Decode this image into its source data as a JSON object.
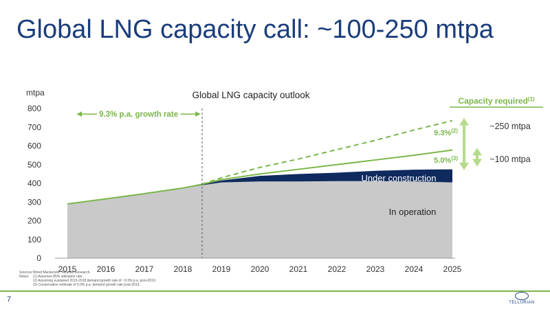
{
  "slide": {
    "title": "Global LNG capacity call: ~100-250 mtpa",
    "page_number": "7",
    "logo_text": "TELLURIAN"
  },
  "footnotes": [
    {
      "key": "Sources:",
      "text": "Wood Mackenzie, Tellurian Research."
    },
    {
      "key": "Notes:",
      "text": "(1) Assumes 85% utilization rate."
    },
    {
      "key": "",
      "text": "(2) Assuming sustained 2015-2018 demand growth rate of ~9.3% p.a. post-2019."
    },
    {
      "key": "",
      "text": "(3) Conservative estimate of 5.0% p.a. demand growth rate post-2019."
    }
  ],
  "colors": {
    "title": "#1a3d7c",
    "accent_green": "#7ab648",
    "light_green": "#b5db8c",
    "operation": "#c9c9c9",
    "construction": "#0f2a5e"
  },
  "chart_data": {
    "type": "area",
    "title": "Global LNG capacity outlook",
    "ylabel": "mtpa",
    "xlabel": "",
    "ylim": [
      0,
      800
    ],
    "yticks": [
      0,
      100,
      200,
      300,
      400,
      500,
      600,
      700,
      800
    ],
    "x": [
      2015,
      2016,
      2017,
      2018,
      2019,
      2020,
      2021,
      2022,
      2023,
      2024,
      2025
    ],
    "series": [
      {
        "name": "In operation",
        "values": [
          290,
          317,
          345,
          375,
          405,
          410,
          410,
          412,
          412,
          410,
          405
        ]
      },
      {
        "name": "Under construction",
        "values": [
          0,
          0,
          0,
          0,
          10,
          30,
          40,
          45,
          55,
          63,
          70
        ]
      }
    ],
    "demand_lines": [
      {
        "label": "9.3%",
        "sup": "(2)",
        "style": "dashed",
        "x": [
          2018.5,
          2019,
          2020,
          2021,
          2022,
          2023,
          2024,
          2025
        ],
        "values": [
          395,
          430,
          485,
          530,
          580,
          630,
          685,
          735
        ]
      },
      {
        "label": "5.0%",
        "sup": "(3)",
        "style": "solid",
        "x": [
          2018.5,
          2019,
          2020,
          2021,
          2022,
          2023,
          2024,
          2025
        ],
        "values": [
          395,
          420,
          450,
          475,
          500,
          525,
          550,
          578
        ]
      }
    ],
    "divider_x": 2018.5,
    "annotations": {
      "growth_rate": "9.3% p.a. growth rate",
      "growth_range": [
        2015.25,
        2018.45
      ],
      "capacity_required": "Capacity required",
      "capacity_required_sup": "(1)",
      "high_label": "~250 mtpa",
      "low_label": "~100 mtpa",
      "high_arrow": [
        470,
        750
      ],
      "low_arrow": [
        490,
        590
      ],
      "area_labels": {
        "operation": "In operation",
        "construction": "Under construction"
      }
    }
  }
}
